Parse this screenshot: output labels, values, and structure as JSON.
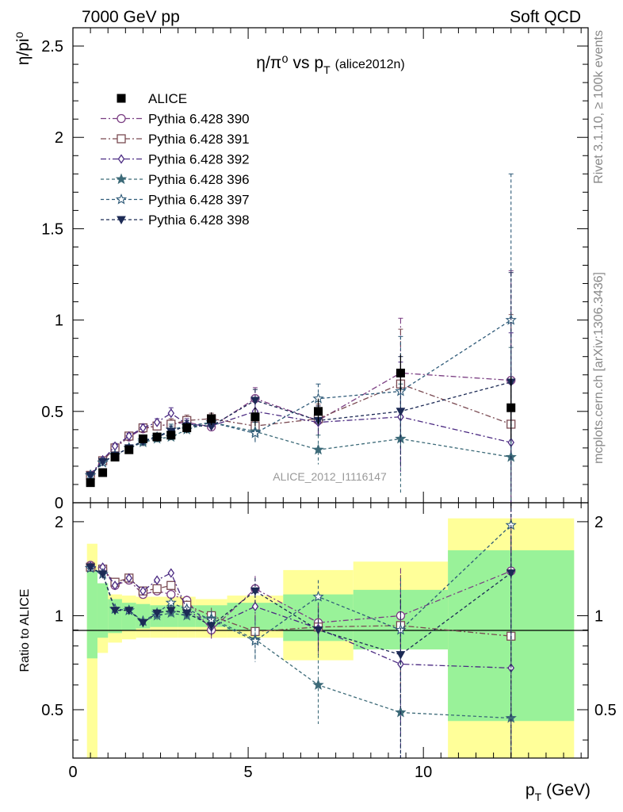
{
  "header": {
    "left": "7000 GeV pp",
    "right": "Soft QCD"
  },
  "side_labels": {
    "top": "Rivet 3.1.10, ≥ 100k events",
    "bottom": "mcplots.cern.ch [arXiv:1306.3436]"
  },
  "watermark": "ALICE_2012_I1116147",
  "chart_data": [
    {
      "type": "scatter",
      "panel": "main",
      "title_main": "η/π⁰ vs p",
      "title_sub": "T",
      "title_tag": "(alice2012n)",
      "ylabel": "η/pi⁰",
      "xlim": [
        0,
        14.7
      ],
      "ylim": [
        0,
        2.6
      ],
      "yticks": [
        0,
        0.5,
        1,
        1.5,
        2,
        2.5
      ],
      "ytick_labels": [
        "0",
        "0.5",
        "1",
        "1.5",
        "2",
        "2.5"
      ],
      "x": [
        0.5,
        0.85,
        1.2,
        1.6,
        2.0,
        2.4,
        2.8,
        3.25,
        3.95,
        5.2,
        7.0,
        9.35,
        12.5
      ],
      "data": {
        "name": "ALICE",
        "y": [
          0.11,
          0.165,
          0.25,
          0.29,
          0.35,
          0.36,
          0.37,
          0.41,
          0.46,
          0.47,
          0.5,
          0.71,
          0.52
        ],
        "err": [
          0.015,
          0.02,
          0.02,
          0.02,
          0.02,
          0.025,
          0.025,
          0.03,
          0.035,
          0.05,
          0.07,
          0.1,
          0.17
        ]
      },
      "series": [
        {
          "name": "Pythia 6.428 390",
          "marker": "circle",
          "dash": "dashdot",
          "color": "#7a3d82",
          "y": [
            0.15,
            0.23,
            0.3,
            0.36,
            0.405,
            0.42,
            0.43,
            0.44,
            0.415,
            0.57,
            0.45,
            0.71,
            0.67
          ],
          "err": [
            0.01,
            0.01,
            0.015,
            0.015,
            0.02,
            0.02,
            0.03,
            0.03,
            0.03,
            0.06,
            0.08,
            0.3,
            0.6
          ]
        },
        {
          "name": "Pythia 6.428 391",
          "marker": "square",
          "dash": "dashdot",
          "color": "#7a4a52",
          "y": [
            0.15,
            0.23,
            0.3,
            0.365,
            0.41,
            0.42,
            0.43,
            0.45,
            0.46,
            0.42,
            0.46,
            0.65,
            0.43
          ],
          "err": [
            0.01,
            0.01,
            0.015,
            0.015,
            0.02,
            0.02,
            0.03,
            0.03,
            0.03,
            0.06,
            0.08,
            0.3,
            0.6
          ]
        },
        {
          "name": "Pythia 6.428 392",
          "marker": "diamond",
          "dash": "dashdot",
          "color": "#4b2a82",
          "y": [
            0.155,
            0.235,
            0.31,
            0.365,
            0.41,
            0.44,
            0.49,
            0.43,
            0.42,
            0.5,
            0.44,
            0.47,
            0.33
          ],
          "err": [
            0.01,
            0.01,
            0.015,
            0.015,
            0.02,
            0.02,
            0.03,
            0.03,
            0.03,
            0.06,
            0.08,
            0.3,
            0.6
          ]
        },
        {
          "name": "Pythia 6.428 396",
          "marker": "star-filled",
          "dash": "dashed",
          "color": "#3c6a78",
          "y": [
            0.15,
            0.22,
            0.26,
            0.3,
            0.33,
            0.35,
            0.36,
            0.4,
            0.44,
            0.39,
            0.29,
            0.35,
            0.25
          ],
          "err": [
            0.01,
            0.01,
            0.015,
            0.015,
            0.02,
            0.02,
            0.03,
            0.03,
            0.03,
            0.06,
            0.08,
            0.3,
            0.6
          ]
        },
        {
          "name": "Pythia 6.428 397",
          "marker": "star-open",
          "dash": "dashed",
          "color": "#2e5a78",
          "y": [
            0.15,
            0.22,
            0.26,
            0.3,
            0.34,
            0.36,
            0.4,
            0.42,
            0.44,
            0.38,
            0.57,
            0.61,
            1.0
          ],
          "err": [
            0.01,
            0.01,
            0.015,
            0.015,
            0.02,
            0.02,
            0.03,
            0.03,
            0.03,
            0.06,
            0.08,
            0.3,
            0.8
          ]
        },
        {
          "name": "Pythia 6.428 398",
          "marker": "triangle-down",
          "dash": "dashed",
          "color": "#1c2a55",
          "y": [
            0.15,
            0.225,
            0.26,
            0.3,
            0.335,
            0.36,
            0.39,
            0.42,
            0.42,
            0.56,
            0.45,
            0.5,
            0.66
          ],
          "err": [
            0.01,
            0.01,
            0.015,
            0.015,
            0.02,
            0.02,
            0.03,
            0.03,
            0.03,
            0.06,
            0.08,
            0.3,
            0.6
          ]
        }
      ]
    },
    {
      "type": "scatter",
      "panel": "ratio",
      "ylabel": "Ratio to ALICE",
      "xlabel_main": "p",
      "xlabel_sub": "T",
      "xlabel_unit": " (GeV)",
      "ylim": [
        0.35,
        2.3
      ],
      "yticks": [
        0.5,
        1,
        2
      ],
      "ytick_labels": [
        "0.5",
        "1",
        "2"
      ],
      "xticks": [
        0,
        5,
        10
      ],
      "xtick_labels": [
        "0",
        "5",
        "10"
      ],
      "bin_edges": [
        0.4,
        0.7,
        1.0,
        1.4,
        1.8,
        2.2,
        2.6,
        3.0,
        3.5,
        4.4,
        6.0,
        8.0,
        10.7,
        14.3
      ],
      "band_stat": [
        [
          0.73,
          1.4
        ],
        [
          0.85,
          1.27
        ],
        [
          0.88,
          1.13
        ],
        [
          0.9,
          1.1
        ],
        [
          0.91,
          1.09
        ],
        [
          0.92,
          1.08
        ],
        [
          0.92,
          1.08
        ],
        [
          0.92,
          1.08
        ],
        [
          0.92,
          1.08
        ],
        [
          0.9,
          1.1
        ],
        [
          0.83,
          1.17
        ],
        [
          0.78,
          1.21
        ],
        [
          0.46,
          1.62
        ]
      ],
      "band_total": [
        [
          0.3,
          1.7
        ],
        [
          0.76,
          1.27
        ],
        [
          0.82,
          1.17
        ],
        [
          0.84,
          1.16
        ],
        [
          0.85,
          1.15
        ],
        [
          0.85,
          1.15
        ],
        [
          0.85,
          1.15
        ],
        [
          0.85,
          1.15
        ],
        [
          0.85,
          1.13
        ],
        [
          0.85,
          1.16
        ],
        [
          0.72,
          1.4
        ],
        [
          0.78,
          1.49
        ],
        [
          0.33,
          2.05
        ]
      ],
      "series": [
        {
          "name": "Pythia 6.428 390",
          "y": [
            1.45,
            1.41,
            1.25,
            1.3,
            1.17,
            1.2,
            1.17,
            1.12,
            0.9,
            1.22,
            0.95,
            1.0,
            1.39
          ],
          "err": [
            0.03,
            0.03,
            0.03,
            0.03,
            0.03,
            0.03,
            0.04,
            0.04,
            0.06,
            0.12,
            0.15,
            0.42,
            1.1
          ]
        },
        {
          "name": "Pythia 6.428 391",
          "y": [
            1.43,
            1.41,
            1.28,
            1.32,
            1.2,
            1.22,
            1.25,
            1.08,
            1.0,
            0.89,
            0.92,
            0.93,
            0.86
          ],
          "err": [
            0.03,
            0.03,
            0.03,
            0.03,
            0.03,
            0.03,
            0.04,
            0.04,
            0.06,
            0.12,
            0.15,
            0.42,
            1.1
          ]
        },
        {
          "name": "Pythia 6.428 392",
          "y": [
            1.44,
            1.43,
            1.25,
            1.32,
            1.2,
            1.3,
            1.37,
            1.05,
            0.92,
            1.07,
            0.91,
            0.7,
            0.68
          ],
          "err": [
            0.03,
            0.03,
            0.03,
            0.03,
            0.03,
            0.03,
            0.04,
            0.04,
            0.06,
            0.12,
            0.15,
            0.42,
            1.1
          ]
        },
        {
          "name": "Pythia 6.428 396",
          "y": [
            1.42,
            1.36,
            1.05,
            1.04,
            0.96,
            1.0,
            1.02,
            1.0,
            0.98,
            0.84,
            0.6,
            0.49,
            0.47
          ],
          "err": [
            0.03,
            0.03,
            0.03,
            0.03,
            0.03,
            0.03,
            0.04,
            0.04,
            0.06,
            0.12,
            0.15,
            0.42,
            1.1
          ]
        },
        {
          "name": "Pythia 6.428 397",
          "y": [
            1.42,
            1.36,
            1.05,
            1.04,
            0.96,
            1.02,
            1.1,
            1.05,
            0.97,
            0.83,
            1.15,
            0.9,
            1.95
          ],
          "err": [
            0.03,
            0.03,
            0.03,
            0.03,
            0.03,
            0.03,
            0.04,
            0.04,
            0.06,
            0.12,
            0.15,
            0.42,
            1.3
          ]
        },
        {
          "name": "Pythia 6.428 398",
          "y": [
            1.43,
            1.36,
            1.04,
            1.04,
            0.95,
            1.02,
            1.04,
            1.02,
            0.93,
            1.2,
            0.9,
            0.75,
            1.37
          ],
          "err": [
            0.03,
            0.03,
            0.03,
            0.03,
            0.03,
            0.03,
            0.04,
            0.04,
            0.06,
            0.12,
            0.15,
            0.42,
            1.1
          ]
        }
      ]
    }
  ],
  "colors": {
    "band_stat": "#99f299",
    "band_total": "#ffff99",
    "data": "#000000"
  }
}
